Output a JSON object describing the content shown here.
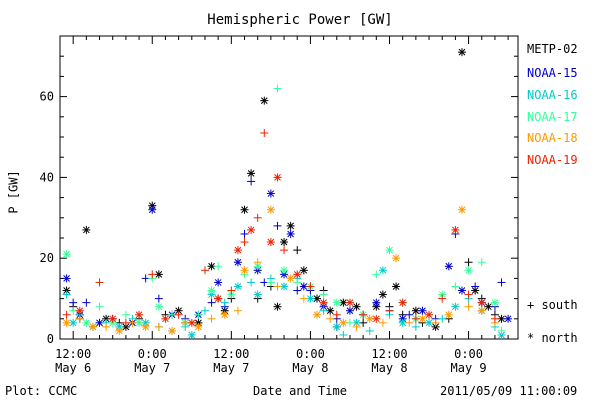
{
  "chart_data": {
    "type": "scatter",
    "title": "Hemispheric Power [GW]",
    "ylabel": "P [GW]",
    "xlabel": "Date and Time",
    "ylim": [
      0,
      75
    ],
    "yticks": [
      0,
      20,
      40,
      60
    ],
    "xticks": [
      {
        "time": "12:00",
        "date": "May 6",
        "hour": 12
      },
      {
        "time": "0:00",
        "date": "May 7",
        "hour": 24
      },
      {
        "time": "12:00",
        "date": "May 7",
        "hour": 36
      },
      {
        "time": "0:00",
        "date": "May 8",
        "hour": 48
      },
      {
        "time": "12:00",
        "date": "May 8",
        "hour": 60
      },
      {
        "time": "0:00",
        "date": "May 9",
        "hour": 72
      }
    ],
    "xlim_hours": [
      10,
      79.5
    ],
    "markers": {
      "south": "+",
      "north": "*"
    },
    "series": [
      {
        "name": "METP-02",
        "color": "#000000",
        "points": [
          [
            11,
            12,
            "n"
          ],
          [
            12,
            8,
            "s"
          ],
          [
            13,
            5,
            "s"
          ],
          [
            14,
            27,
            "n"
          ],
          [
            15,
            3,
            "s"
          ],
          [
            17,
            5,
            "n"
          ],
          [
            19,
            4,
            "s"
          ],
          [
            20,
            3,
            "n"
          ],
          [
            22,
            5,
            "s"
          ],
          [
            24,
            33,
            "n"
          ],
          [
            25,
            16,
            "n"
          ],
          [
            26,
            6,
            "s"
          ],
          [
            28,
            7,
            "n"
          ],
          [
            29,
            4,
            "s"
          ],
          [
            31,
            4,
            "n"
          ],
          [
            33,
            18,
            "n"
          ],
          [
            34,
            10,
            "s"
          ],
          [
            35,
            7,
            "n"
          ],
          [
            36,
            10,
            "s"
          ],
          [
            38,
            32,
            "n"
          ],
          [
            39,
            41,
            "n"
          ],
          [
            40,
            10,
            "s"
          ],
          [
            41,
            59,
            "n"
          ],
          [
            42,
            13,
            "s"
          ],
          [
            43,
            8,
            "n"
          ],
          [
            44,
            24,
            "n"
          ],
          [
            45,
            28,
            "n"
          ],
          [
            46,
            22,
            "s"
          ],
          [
            47,
            17,
            "n"
          ],
          [
            48,
            13,
            "s"
          ],
          [
            49,
            10,
            "n"
          ],
          [
            50,
            12,
            "s"
          ],
          [
            51,
            7,
            "n"
          ],
          [
            52,
            3,
            "s"
          ],
          [
            53,
            9,
            "n"
          ],
          [
            55,
            8,
            "n"
          ],
          [
            56,
            4,
            "s"
          ],
          [
            58,
            8,
            "n"
          ],
          [
            59,
            11,
            "n"
          ],
          [
            60,
            8,
            "s"
          ],
          [
            61,
            13,
            "n"
          ],
          [
            62,
            6,
            "s"
          ],
          [
            64,
            7,
            "n"
          ],
          [
            65,
            4,
            "s"
          ],
          [
            67,
            3,
            "n"
          ],
          [
            69,
            5,
            "s"
          ],
          [
            71,
            71,
            "n"
          ],
          [
            72,
            19,
            "s"
          ],
          [
            73,
            12,
            "n"
          ],
          [
            74,
            10,
            "s"
          ],
          [
            75,
            8,
            "n"
          ],
          [
            76,
            6,
            "s"
          ],
          [
            77,
            5,
            "n"
          ]
        ]
      },
      {
        "name": "NOAA-15",
        "color": "#0000cc",
        "points": [
          [
            11,
            15,
            "n"
          ],
          [
            12,
            9,
            "s"
          ],
          [
            13,
            6,
            "n"
          ],
          [
            14,
            9,
            "s"
          ],
          [
            16,
            4,
            "n"
          ],
          [
            18,
            5,
            "s"
          ],
          [
            21,
            4,
            "n"
          ],
          [
            23,
            15,
            "s"
          ],
          [
            24,
            32,
            "n"
          ],
          [
            25,
            10,
            "s"
          ],
          [
            27,
            6,
            "n"
          ],
          [
            29,
            5,
            "s"
          ],
          [
            31,
            6,
            "n"
          ],
          [
            33,
            9,
            "s"
          ],
          [
            34,
            14,
            "n"
          ],
          [
            35,
            8,
            "s"
          ],
          [
            37,
            19,
            "n"
          ],
          [
            38,
            26,
            "s"
          ],
          [
            39,
            39,
            "s"
          ],
          [
            40,
            17,
            "n"
          ],
          [
            41,
            14,
            "s"
          ],
          [
            42,
            36,
            "n"
          ],
          [
            43,
            28,
            "s"
          ],
          [
            44,
            16,
            "n"
          ],
          [
            45,
            26,
            "n"
          ],
          [
            46,
            12,
            "s"
          ],
          [
            47,
            13,
            "n"
          ],
          [
            48,
            12,
            "s"
          ],
          [
            50,
            8,
            "n"
          ],
          [
            52,
            5,
            "s"
          ],
          [
            54,
            7,
            "n"
          ],
          [
            56,
            6,
            "s"
          ],
          [
            58,
            9,
            "n"
          ],
          [
            60,
            7,
            "s"
          ],
          [
            62,
            5,
            "n"
          ],
          [
            63,
            6,
            "s"
          ],
          [
            65,
            7,
            "n"
          ],
          [
            67,
            5,
            "s"
          ],
          [
            69,
            18,
            "n"
          ],
          [
            70,
            26,
            "s"
          ],
          [
            71,
            12,
            "n"
          ],
          [
            73,
            13,
            "s"
          ],
          [
            74,
            9,
            "n"
          ],
          [
            76,
            8,
            "s"
          ],
          [
            77,
            14,
            "s"
          ],
          [
            78,
            5,
            "n"
          ]
        ]
      },
      {
        "name": "NOAA-16",
        "color": "#00cccc",
        "points": [
          [
            11,
            11,
            "s"
          ],
          [
            12,
            4,
            "n"
          ],
          [
            13,
            6,
            "s"
          ],
          [
            15,
            3,
            "n"
          ],
          [
            17,
            4,
            "s"
          ],
          [
            19,
            3,
            "n"
          ],
          [
            21,
            5,
            "s"
          ],
          [
            23,
            4,
            "n"
          ],
          [
            25,
            3,
            "s"
          ],
          [
            27,
            2,
            "n"
          ],
          [
            29,
            3,
            "s"
          ],
          [
            30,
            1,
            "n"
          ],
          [
            32,
            7,
            "s"
          ],
          [
            33,
            11,
            "n"
          ],
          [
            35,
            9,
            "s"
          ],
          [
            37,
            13,
            "n"
          ],
          [
            39,
            14,
            "s"
          ],
          [
            40,
            11,
            "n"
          ],
          [
            42,
            15,
            "s"
          ],
          [
            44,
            13,
            "n"
          ],
          [
            46,
            15,
            "s"
          ],
          [
            48,
            10,
            "n"
          ],
          [
            50,
            7,
            "s"
          ],
          [
            52,
            3,
            "n"
          ],
          [
            53,
            1,
            "s"
          ],
          [
            55,
            4,
            "n"
          ],
          [
            57,
            2,
            "s"
          ],
          [
            59,
            17,
            "n"
          ],
          [
            60,
            6,
            "s"
          ],
          [
            62,
            4,
            "n"
          ],
          [
            64,
            3,
            "s"
          ],
          [
            66,
            4,
            "n"
          ],
          [
            68,
            5,
            "s"
          ],
          [
            70,
            8,
            "n"
          ],
          [
            72,
            10,
            "s"
          ],
          [
            74,
            7,
            "n"
          ],
          [
            76,
            3,
            "s"
          ],
          [
            77,
            1,
            "n"
          ]
        ]
      },
      {
        "name": "NOAA-17",
        "color": "#33ff99",
        "points": [
          [
            11,
            21,
            "n"
          ],
          [
            12,
            7,
            "s"
          ],
          [
            14,
            4,
            "n"
          ],
          [
            16,
            8,
            "s"
          ],
          [
            18,
            4,
            "n"
          ],
          [
            20,
            6,
            "s"
          ],
          [
            22,
            4,
            "n"
          ],
          [
            24,
            15,
            "s"
          ],
          [
            25,
            8,
            "n"
          ],
          [
            27,
            6,
            "s"
          ],
          [
            29,
            4,
            "n"
          ],
          [
            31,
            6,
            "s"
          ],
          [
            33,
            12,
            "n"
          ],
          [
            34,
            18,
            "s"
          ],
          [
            36,
            11,
            "n"
          ],
          [
            38,
            16,
            "s"
          ],
          [
            40,
            18,
            "n"
          ],
          [
            42,
            14,
            "s"
          ],
          [
            43,
            62,
            "s"
          ],
          [
            44,
            17,
            "n"
          ],
          [
            46,
            14,
            "s"
          ],
          [
            48,
            13,
            "n"
          ],
          [
            50,
            11,
            "s"
          ],
          [
            52,
            9,
            "n"
          ],
          [
            54,
            4,
            "s"
          ],
          [
            56,
            6,
            "n"
          ],
          [
            58,
            16,
            "s"
          ],
          [
            60,
            22,
            "n"
          ],
          [
            62,
            9,
            "s"
          ],
          [
            64,
            5,
            "n"
          ],
          [
            66,
            6,
            "s"
          ],
          [
            68,
            11,
            "n"
          ],
          [
            70,
            13,
            "s"
          ],
          [
            72,
            17,
            "n"
          ],
          [
            74,
            19,
            "s"
          ],
          [
            76,
            9,
            "n"
          ],
          [
            77,
            2,
            "s"
          ]
        ]
      },
      {
        "name": "NOAA-18",
        "color": "#ff9900",
        "points": [
          [
            11,
            4,
            "n"
          ],
          [
            13,
            5,
            "s"
          ],
          [
            15,
            3,
            "n"
          ],
          [
            17,
            3,
            "s"
          ],
          [
            19,
            2,
            "n"
          ],
          [
            21,
            4,
            "s"
          ],
          [
            23,
            3,
            "n"
          ],
          [
            25,
            3,
            "s"
          ],
          [
            27,
            2,
            "n"
          ],
          [
            29,
            4,
            "s"
          ],
          [
            31,
            3,
            "n"
          ],
          [
            33,
            5,
            "s"
          ],
          [
            35,
            6,
            "n"
          ],
          [
            37,
            7,
            "s"
          ],
          [
            38,
            17,
            "n"
          ],
          [
            40,
            19,
            "s"
          ],
          [
            42,
            32,
            "n"
          ],
          [
            43,
            13,
            "s"
          ],
          [
            45,
            15,
            "n"
          ],
          [
            47,
            10,
            "s"
          ],
          [
            49,
            6,
            "n"
          ],
          [
            51,
            5,
            "s"
          ],
          [
            53,
            4,
            "n"
          ],
          [
            55,
            3,
            "s"
          ],
          [
            57,
            5,
            "n"
          ],
          [
            59,
            4,
            "s"
          ],
          [
            61,
            20,
            "n"
          ],
          [
            63,
            4,
            "s"
          ],
          [
            65,
            5,
            "n"
          ],
          [
            67,
            4,
            "s"
          ],
          [
            69,
            6,
            "n"
          ],
          [
            71,
            32,
            "n"
          ],
          [
            72,
            8,
            "s"
          ],
          [
            74,
            7,
            "n"
          ],
          [
            76,
            4,
            "s"
          ]
        ]
      },
      {
        "name": "NOAA-19",
        "color": "#ee2200",
        "points": [
          [
            11,
            6,
            "s"
          ],
          [
            13,
            7,
            "n"
          ],
          [
            16,
            14,
            "s"
          ],
          [
            18,
            5,
            "n"
          ],
          [
            20,
            4,
            "s"
          ],
          [
            22,
            6,
            "n"
          ],
          [
            24,
            16,
            "s"
          ],
          [
            26,
            5,
            "n"
          ],
          [
            28,
            6,
            "s"
          ],
          [
            30,
            4,
            "n"
          ],
          [
            32,
            17,
            "s"
          ],
          [
            34,
            10,
            "n"
          ],
          [
            36,
            12,
            "s"
          ],
          [
            37,
            22,
            "n"
          ],
          [
            38,
            24,
            "s"
          ],
          [
            39,
            27,
            "n"
          ],
          [
            40,
            30,
            "s"
          ],
          [
            41,
            51,
            "s"
          ],
          [
            42,
            24,
            "n"
          ],
          [
            43,
            40,
            "n"
          ],
          [
            44,
            22,
            "s"
          ],
          [
            46,
            16,
            "n"
          ],
          [
            48,
            13,
            "s"
          ],
          [
            50,
            9,
            "n"
          ],
          [
            52,
            6,
            "s"
          ],
          [
            54,
            9,
            "n"
          ],
          [
            56,
            6,
            "s"
          ],
          [
            58,
            5,
            "n"
          ],
          [
            60,
            7,
            "s"
          ],
          [
            62,
            9,
            "n"
          ],
          [
            64,
            5,
            "s"
          ],
          [
            66,
            6,
            "n"
          ],
          [
            68,
            10,
            "s"
          ],
          [
            70,
            27,
            "n"
          ],
          [
            72,
            11,
            "s"
          ],
          [
            74,
            9,
            "n"
          ],
          [
            76,
            5,
            "s"
          ]
        ]
      }
    ],
    "legend_position": "right"
  },
  "footer": {
    "left": "Plot: CCMC",
    "right": "2011/05/09 11:00:09"
  }
}
